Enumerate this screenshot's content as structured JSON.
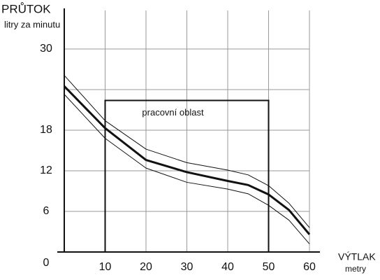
{
  "chart_data": {
    "type": "line",
    "title": "PRŮTOK",
    "y_label": "litry za minutu",
    "x_title": "VÝTLAK",
    "x_label": "metry",
    "x": [
      0,
      10,
      20,
      30,
      40,
      45,
      50,
      55,
      60
    ],
    "series": [
      {
        "color": "#111111",
        "width": 1,
        "values": [
          26.1,
          19.4,
          15.2,
          13.2,
          12.1,
          11.4,
          9.8,
          7.2,
          3.6
        ]
      },
      {
        "color": "#111111",
        "width": 3,
        "values": [
          24.5,
          18.3,
          13.6,
          11.8,
          10.5,
          9.9,
          8.5,
          6.2,
          2.6
        ]
      },
      {
        "color": "#111111",
        "width": 1,
        "values": [
          23.3,
          16.8,
          12.4,
          10.3,
          9.3,
          8.6,
          6.9,
          4.7,
          1.2
        ]
      }
    ],
    "xlim": [
      0,
      60
    ],
    "ylim": [
      0,
      36
    ],
    "xticks": [
      10,
      20,
      30,
      40,
      50,
      60
    ],
    "yticks": [
      0,
      6,
      12,
      18,
      30
    ],
    "ygrid": [
      6,
      12,
      18,
      24,
      30
    ],
    "grid": true,
    "region": {
      "label": "pracovní oblast",
      "xlim": [
        10,
        50
      ],
      "ylim": [
        0,
        22.4
      ]
    }
  }
}
